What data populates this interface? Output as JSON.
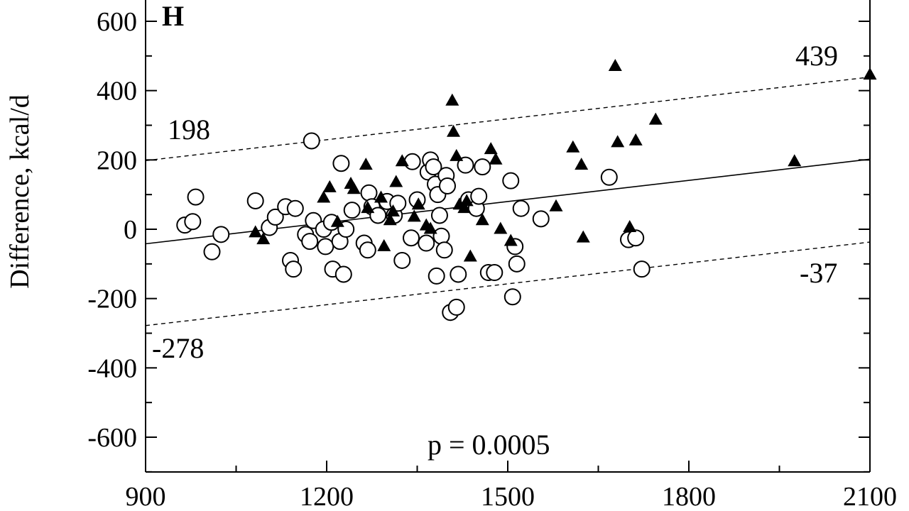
{
  "chart_data": {
    "type": "scatter",
    "panel_label": "H",
    "ylabel": "Difference, kcal/d",
    "xlabel": "",
    "xlim": [
      900,
      2100
    ],
    "ylim": [
      -700,
      600
    ],
    "x_ticks": [
      900,
      1200,
      1500,
      1800,
      2100
    ],
    "x_tick_labels": [
      "900",
      "1200",
      "1500",
      "1800",
      "2100"
    ],
    "y_ticks": [
      600,
      400,
      200,
      0,
      -200,
      -400,
      -600
    ],
    "y_tick_labels": [
      "600",
      "400",
      "200",
      "0",
      "-200",
      "-400",
      "-600"
    ],
    "grid": false,
    "series": [
      {
        "marker": "open-circle",
        "points": [
          [
            965,
            12
          ],
          [
            978,
            22
          ],
          [
            983,
            93
          ],
          [
            1010,
            -65
          ],
          [
            1025,
            -15
          ],
          [
            1082,
            82
          ],
          [
            1105,
            5
          ],
          [
            1115,
            35
          ],
          [
            1132,
            65
          ],
          [
            1140,
            -90
          ],
          [
            1145,
            -115
          ],
          [
            1148,
            60
          ],
          [
            1165,
            -15
          ],
          [
            1172,
            -35
          ],
          [
            1175,
            255
          ],
          [
            1178,
            25
          ],
          [
            1195,
            0
          ],
          [
            1198,
            -50
          ],
          [
            1208,
            20
          ],
          [
            1210,
            -115
          ],
          [
            1222,
            -35
          ],
          [
            1224,
            190
          ],
          [
            1228,
            -130
          ],
          [
            1232,
            0
          ],
          [
            1242,
            55
          ],
          [
            1262,
            -40
          ],
          [
            1268,
            -60
          ],
          [
            1270,
            105
          ],
          [
            1275,
            65
          ],
          [
            1285,
            40
          ],
          [
            1300,
            80
          ],
          [
            1312,
            40
          ],
          [
            1318,
            75
          ],
          [
            1325,
            -90
          ],
          [
            1340,
            -25
          ],
          [
            1342,
            195
          ],
          [
            1350,
            85
          ],
          [
            1365,
            -40
          ],
          [
            1368,
            165
          ],
          [
            1372,
            200
          ],
          [
            1377,
            180
          ],
          [
            1380,
            130
          ],
          [
            1382,
            -135
          ],
          [
            1384,
            100
          ],
          [
            1387,
            40
          ],
          [
            1390,
            -20
          ],
          [
            1395,
            -60
          ],
          [
            1398,
            155
          ],
          [
            1400,
            125
          ],
          [
            1405,
            -240
          ],
          [
            1415,
            -225
          ],
          [
            1418,
            -130
          ],
          [
            1430,
            185
          ],
          [
            1435,
            85
          ],
          [
            1448,
            60
          ],
          [
            1452,
            95
          ],
          [
            1458,
            180
          ],
          [
            1468,
            -125
          ],
          [
            1478,
            -125
          ],
          [
            1505,
            140
          ],
          [
            1508,
            -195
          ],
          [
            1512,
            -50
          ],
          [
            1515,
            -100
          ],
          [
            1522,
            60
          ],
          [
            1555,
            30
          ],
          [
            1668,
            150
          ],
          [
            1700,
            -30
          ],
          [
            1712,
            -25
          ],
          [
            1722,
            -115
          ]
        ]
      },
      {
        "marker": "filled-triangle",
        "points": [
          [
            1082,
            -10
          ],
          [
            1095,
            -30
          ],
          [
            1195,
            90
          ],
          [
            1205,
            120
          ],
          [
            1218,
            20
          ],
          [
            1240,
            130
          ],
          [
            1245,
            115
          ],
          [
            1265,
            185
          ],
          [
            1268,
            60
          ],
          [
            1290,
            90
          ],
          [
            1295,
            -50
          ],
          [
            1305,
            25
          ],
          [
            1310,
            50
          ],
          [
            1315,
            135
          ],
          [
            1325,
            195
          ],
          [
            1345,
            35
          ],
          [
            1352,
            70
          ],
          [
            1365,
            10
          ],
          [
            1372,
            0
          ],
          [
            1408,
            370
          ],
          [
            1410,
            280
          ],
          [
            1415,
            210
          ],
          [
            1420,
            70
          ],
          [
            1428,
            60
          ],
          [
            1432,
            80
          ],
          [
            1438,
            -80
          ],
          [
            1458,
            25
          ],
          [
            1472,
            230
          ],
          [
            1480,
            200
          ],
          [
            1488,
            0
          ],
          [
            1505,
            -35
          ],
          [
            1580,
            65
          ],
          [
            1608,
            235
          ],
          [
            1622,
            185
          ],
          [
            1625,
            -25
          ],
          [
            1678,
            470
          ],
          [
            1682,
            250
          ],
          [
            1702,
            5
          ],
          [
            1712,
            255
          ],
          [
            1745,
            315
          ],
          [
            1975,
            195
          ],
          [
            2100,
            445
          ]
        ]
      }
    ],
    "regression": {
      "center": {
        "style": "solid",
        "x": [
          900,
          2100
        ],
        "y": [
          -42,
          202
        ]
      },
      "upper": {
        "style": "dashed",
        "x": [
          900,
          2100
        ],
        "y": [
          198,
          439
        ]
      },
      "lower": {
        "style": "dashed",
        "x": [
          900,
          2100
        ],
        "y": [
          -278,
          -37
        ]
      }
    },
    "annotations": {
      "upper_left": "198",
      "upper_right": "439",
      "lower_left": "-278",
      "lower_right": "-37",
      "p_value": "p = 0.0005"
    }
  }
}
